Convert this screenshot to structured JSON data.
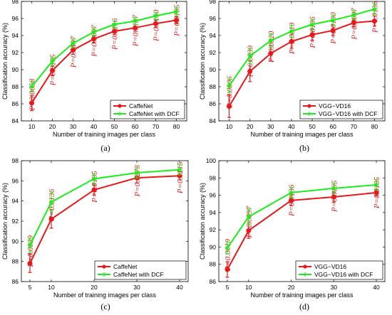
{
  "colors": {
    "series_a": "#e8181a",
    "series_b": "#1aee1a",
    "pvalue": "#e8181a",
    "axis": "#000000"
  },
  "chart_data": [
    {
      "type": "line",
      "caption": "(a)",
      "xlabel": "Number of training images per class",
      "ylabel": "Classification accuracy (%)",
      "x": [
        10,
        20,
        30,
        40,
        50,
        60,
        70,
        80
      ],
      "xlim": [
        5,
        85
      ],
      "ylim": [
        84,
        98
      ],
      "yticks": [
        84,
        86,
        88,
        90,
        92,
        94,
        96,
        98
      ],
      "grid": false,
      "legend_position": "bottom-right",
      "series": [
        {
          "name": "CaffeNet",
          "values": [
            86.1,
            89.9,
            92.3,
            93.6,
            94.5,
            94.9,
            95.4,
            95.8
          ],
          "errors": [
            0.9,
            0.6,
            0.5,
            0.4,
            0.4,
            0.4,
            0.4,
            0.4
          ]
        },
        {
          "name": "CaffeNet with DCF",
          "values": [
            88.0,
            91.0,
            93.1,
            94.4,
            95.3,
            95.7,
            96.3,
            96.8
          ],
          "errors": [
            0.6,
            0.5,
            0.5,
            0.5,
            0.4,
            0.4,
            0.4,
            0.5
          ]
        }
      ],
      "annotations": [
        "P=0.0058",
        "P=0.0105",
        "P=0.0097",
        "P=0.0097",
        "P=0.0216",
        "P=0.0137",
        "P=0.0150",
        "P=0.0195"
      ]
    },
    {
      "type": "line",
      "caption": "(b)",
      "xlabel": "Number of training images per class",
      "ylabel": "Classification accuracy (%)",
      "x": [
        10,
        20,
        30,
        40,
        50,
        60,
        70,
        80
      ],
      "xlim": [
        5,
        85
      ],
      "ylim": [
        84,
        98
      ],
      "yticks": [
        84,
        86,
        88,
        90,
        92,
        94,
        96,
        98
      ],
      "grid": false,
      "legend_position": "bottom-right",
      "series": [
        {
          "name": "VGG−VD16",
          "values": [
            85.7,
            89.8,
            91.9,
            93.3,
            94.1,
            94.6,
            95.5,
            95.7
          ],
          "errors": [
            1.3,
            1.2,
            0.9,
            0.8,
            0.7,
            0.6,
            0.5,
            0.6
          ]
        },
        {
          "name": "VGG−VD16 with DCF",
          "values": [
            88.1,
            91.6,
            93.4,
            94.5,
            95.3,
            95.8,
            96.4,
            97.1
          ],
          "errors": [
            0.8,
            0.9,
            0.8,
            0.7,
            0.6,
            0.6,
            0.5,
            0.6
          ]
        }
      ],
      "annotations": [
        "P=0.0006",
        "P=0.0039",
        "P=0.0020",
        "P=0.0019",
        "P=0.0136",
        "P=0.0130",
        "P=0.0097",
        "P=0.0136"
      ]
    },
    {
      "type": "line",
      "caption": "(c)",
      "xlabel": "Number of training images per class",
      "ylabel": "Classification accuracy (%)",
      "x": [
        5,
        10,
        20,
        30,
        40
      ],
      "xlim": [
        3,
        42
      ],
      "ylim": [
        86,
        98
      ],
      "yticks": [
        86,
        88,
        90,
        92,
        94,
        96,
        98
      ],
      "grid": false,
      "legend_position": "bottom-right",
      "series": [
        {
          "name": "CaffeNet",
          "values": [
            87.8,
            92.2,
            95.1,
            96.3,
            96.5
          ],
          "errors": [
            0.9,
            0.9,
            0.5,
            0.5,
            0.4
          ]
        },
        {
          "name": "CaffeNet with DCF",
          "values": [
            89.6,
            93.9,
            96.2,
            96.8,
            97.1
          ],
          "errors": [
            0.7,
            1.0,
            0.5,
            0.5,
            0.5
          ]
        }
      ],
      "annotations": [
        "P=0.0039",
        "P=0.0136",
        "P=0.0195",
        "P=0.0273",
        "P=0.0215"
      ]
    },
    {
      "type": "line",
      "caption": "(d)",
      "xlabel": "Number of training images per class",
      "ylabel": "Classification accuracy (%)",
      "x": [
        5,
        10,
        20,
        30,
        40
      ],
      "xlim": [
        3,
        42
      ],
      "ylim": [
        86,
        100
      ],
      "yticks": [
        86,
        88,
        90,
        92,
        94,
        96,
        98,
        100
      ],
      "grid": false,
      "legend_position": "bottom-right",
      "series": [
        {
          "name": "VGG−VD16",
          "values": [
            87.4,
            91.9,
            95.4,
            95.8,
            96.3
          ],
          "errors": [
            0.9,
            0.9,
            0.6,
            0.6,
            0.4
          ]
        },
        {
          "name": "VGG−VD16 with DCF",
          "values": [
            89.9,
            93.5,
            96.3,
            96.8,
            97.2
          ],
          "errors": [
            0.7,
            0.9,
            0.6,
            0.6,
            0.6
          ]
        }
      ],
      "annotations": [
        "P=0.0019",
        "P=0.0097",
        "P=0.0136",
        "P=0.0195",
        "P=0.0195"
      ]
    }
  ]
}
